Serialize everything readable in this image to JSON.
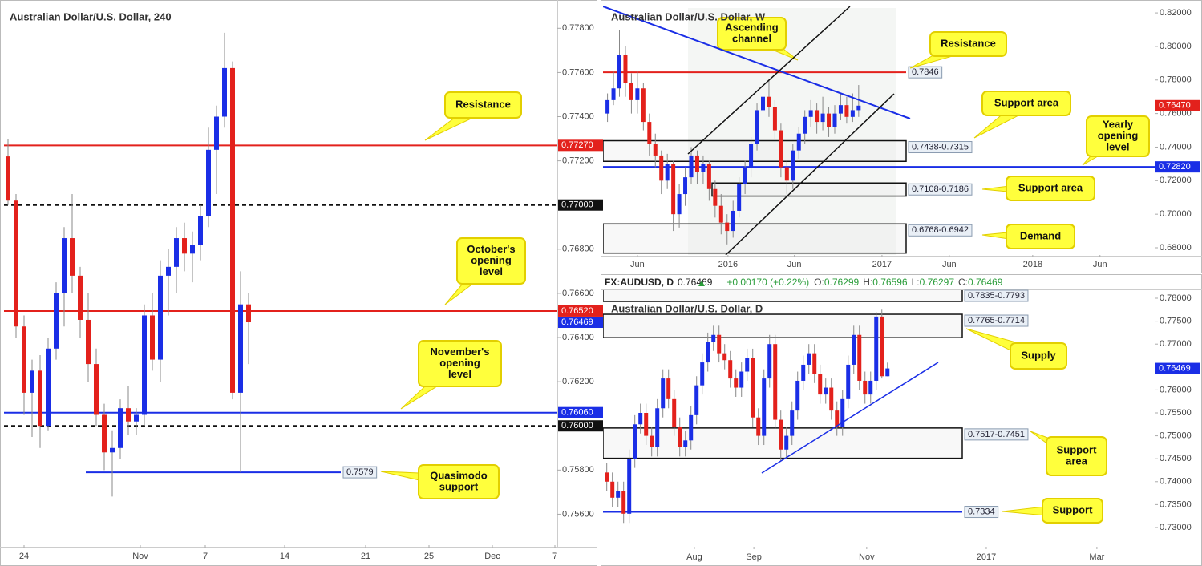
{
  "chart_data": [
    {
      "type": "candlestick",
      "title": "Australian Dollar/U.S. Dollar, 240",
      "up_color": "#1a2ee6",
      "down_color": "#e3211c",
      "ylim": [
        0.7546,
        0.7791
      ],
      "yticks": [
        {
          "value": 0.756,
          "label": "0.75600"
        },
        {
          "value": 0.758,
          "label": "0.75800"
        },
        {
          "value": 0.762,
          "label": "0.76200"
        },
        {
          "value": 0.764,
          "label": "0.76400"
        },
        {
          "value": 0.766,
          "label": "0.76600"
        },
        {
          "value": 0.768,
          "label": "0.76800"
        },
        {
          "value": 0.772,
          "label": "0.77200"
        },
        {
          "value": 0.774,
          "label": "0.77400"
        },
        {
          "value": 0.776,
          "label": "0.77600"
        },
        {
          "value": 0.778,
          "label": "0.77800"
        }
      ],
      "xlim": [
        -0.5,
        68.5
      ],
      "xticks": [
        {
          "value": 2,
          "label": "24"
        },
        {
          "value": 16.5,
          "label": "Nov"
        },
        {
          "value": 24.6,
          "label": "7"
        },
        {
          "value": 34.5,
          "label": "14"
        },
        {
          "value": 44.6,
          "label": "21"
        },
        {
          "value": 52.5,
          "label": "25"
        },
        {
          "value": 60.4,
          "label": "Dec"
        },
        {
          "value": 68.2,
          "label": "7"
        }
      ],
      "candles": [
        [
          0.7722,
          0.773,
          0.77,
          0.7702
        ],
        [
          0.7702,
          0.7705,
          0.764,
          0.7645
        ],
        [
          0.7645,
          0.765,
          0.7605,
          0.7615
        ],
        [
          0.7615,
          0.763,
          0.7595,
          0.7625
        ],
        [
          0.7625,
          0.7632,
          0.759,
          0.76
        ],
        [
          0.76,
          0.764,
          0.7598,
          0.7635
        ],
        [
          0.7635,
          0.7665,
          0.763,
          0.766
        ],
        [
          0.766,
          0.769,
          0.7645,
          0.7685
        ],
        [
          0.7685,
          0.7705,
          0.766,
          0.7668
        ],
        [
          0.7668,
          0.7672,
          0.764,
          0.7648
        ],
        [
          0.7648,
          0.766,
          0.762,
          0.7628
        ],
        [
          0.7628,
          0.7635,
          0.76,
          0.7605
        ],
        [
          0.7605,
          0.761,
          0.758,
          0.7588
        ],
        [
          0.7588,
          0.7598,
          0.7568,
          0.759
        ],
        [
          0.759,
          0.7612,
          0.7585,
          0.7608
        ],
        [
          0.7608,
          0.7618,
          0.7596,
          0.7602
        ],
        [
          0.7602,
          0.7608,
          0.7596,
          0.7605
        ],
        [
          0.7605,
          0.7655,
          0.76,
          0.765
        ],
        [
          0.765,
          0.766,
          0.7625,
          0.763
        ],
        [
          0.763,
          0.7675,
          0.762,
          0.7668
        ],
        [
          0.7668,
          0.768,
          0.765,
          0.7672
        ],
        [
          0.7672,
          0.769,
          0.766,
          0.7685
        ],
        [
          0.7685,
          0.7692,
          0.767,
          0.7678
        ],
        [
          0.7678,
          0.7688,
          0.7665,
          0.7682
        ],
        [
          0.7682,
          0.77,
          0.7675,
          0.7695
        ],
        [
          0.7695,
          0.7735,
          0.769,
          0.7725
        ],
        [
          0.7725,
          0.7745,
          0.7705,
          0.774
        ],
        [
          0.774,
          0.7778,
          0.7735,
          0.7762
        ],
        [
          0.7762,
          0.7765,
          0.7612,
          0.7615
        ],
        [
          0.7615,
          0.767,
          0.7579,
          0.7655
        ],
        [
          0.7655,
          0.766,
          0.7628,
          0.76469
        ]
      ],
      "levels": [
        {
          "value": 0.7727,
          "label": "0.77270",
          "color": "#e3211c",
          "dashed": false
        },
        {
          "value": 0.77,
          "label": "0.77000",
          "color": "#111111",
          "dashed": true
        },
        {
          "value": 0.7652,
          "label": "0.76520",
          "color": "#e3211c",
          "dashed": false
        },
        {
          "value": 0.7606,
          "label": "0.76060",
          "color": "#1a2ee6",
          "dashed": false
        },
        {
          "value": 0.76,
          "label": "0.76000",
          "color": "#111111",
          "dashed": true
        },
        {
          "value": 0.7579,
          "label": "0.7579",
          "color": "#1a2ee6",
          "dashed": false
        }
      ],
      "last": {
        "value": 0.76469,
        "label": "0.76469",
        "color": "#1a2ee6"
      },
      "zones": [],
      "callouts": [
        {
          "lines": [
            "Resistance"
          ]
        },
        {
          "lines": [
            "October's",
            "opening",
            "level"
          ]
        },
        {
          "lines": [
            "November's",
            "opening",
            "level"
          ]
        },
        {
          "lines": [
            "Quasimodo",
            "support"
          ]
        }
      ]
    },
    {
      "type": "candlestick",
      "title": "Australian Dollar/U.S. Dollar, W",
      "up_color": "#1a2ee6",
      "down_color": "#e3211c",
      "ylim": [
        0.6757,
        0.8253
      ],
      "yticks": [
        {
          "value": 0.68,
          "label": "0.68000"
        },
        {
          "value": 0.7,
          "label": "0.70000"
        },
        {
          "value": 0.72,
          "label": "0.72000"
        },
        {
          "value": 0.74,
          "label": "0.74000"
        },
        {
          "value": 0.76,
          "label": "0.76000"
        },
        {
          "value": 0.78,
          "label": "0.78000"
        },
        {
          "value": 0.8,
          "label": "0.80000"
        },
        {
          "value": 0.82,
          "label": "0.82000"
        }
      ],
      "xlim": [
        -0.75,
        91.5
      ],
      "xticks": [
        {
          "value": 5,
          "label": "Jun"
        },
        {
          "value": 20.15,
          "label": "2016"
        },
        {
          "value": 31.25,
          "label": "Jun"
        },
        {
          "value": 45.9,
          "label": "2017"
        },
        {
          "value": 57.15,
          "label": "Jun"
        },
        {
          "value": 71.1,
          "label": "2018"
        },
        {
          "value": 82.35,
          "label": "Jun"
        }
      ],
      "candles": [
        [
          0.76,
          0.772,
          0.755,
          0.768
        ],
        [
          0.768,
          0.785,
          0.765,
          0.775
        ],
        [
          0.775,
          0.81,
          0.77,
          0.795
        ],
        [
          0.795,
          0.8,
          0.77,
          0.778
        ],
        [
          0.778,
          0.784,
          0.76,
          0.768
        ],
        [
          0.768,
          0.785,
          0.76,
          0.775
        ],
        [
          0.775,
          0.778,
          0.75,
          0.755
        ],
        [
          0.755,
          0.76,
          0.735,
          0.742
        ],
        [
          0.742,
          0.748,
          0.728,
          0.735
        ],
        [
          0.735,
          0.738,
          0.712,
          0.72
        ],
        [
          0.72,
          0.736,
          0.715,
          0.73
        ],
        [
          0.73,
          0.732,
          0.69,
          0.7
        ],
        [
          0.7,
          0.718,
          0.692,
          0.712
        ],
        [
          0.712,
          0.728,
          0.705,
          0.722
        ],
        [
          0.722,
          0.74,
          0.718,
          0.735
        ],
        [
          0.735,
          0.738,
          0.718,
          0.725
        ],
        [
          0.725,
          0.735,
          0.718,
          0.73
        ],
        [
          0.73,
          0.732,
          0.708,
          0.715
        ],
        [
          0.715,
          0.72,
          0.698,
          0.705
        ],
        [
          0.705,
          0.712,
          0.688,
          0.695
        ],
        [
          0.695,
          0.7,
          0.682,
          0.69
        ],
        [
          0.69,
          0.708,
          0.686,
          0.702
        ],
        [
          0.702,
          0.722,
          0.698,
          0.718
        ],
        [
          0.718,
          0.732,
          0.712,
          0.728
        ],
        [
          0.728,
          0.746,
          0.722,
          0.742
        ],
        [
          0.742,
          0.766,
          0.738,
          0.762
        ],
        [
          0.762,
          0.774,
          0.755,
          0.77
        ],
        [
          0.77,
          0.78,
          0.758,
          0.764
        ],
        [
          0.764,
          0.768,
          0.745,
          0.75
        ],
        [
          0.75,
          0.754,
          0.722,
          0.728
        ],
        [
          0.728,
          0.732,
          0.712,
          0.72
        ],
        [
          0.72,
          0.742,
          0.715,
          0.738
        ],
        [
          0.738,
          0.752,
          0.733,
          0.748
        ],
        [
          0.748,
          0.762,
          0.742,
          0.758
        ],
        [
          0.758,
          0.768,
          0.752,
          0.762
        ],
        [
          0.762,
          0.766,
          0.748,
          0.755
        ],
        [
          0.755,
          0.77,
          0.75,
          0.76
        ],
        [
          0.76,
          0.764,
          0.746,
          0.752
        ],
        [
          0.752,
          0.765,
          0.748,
          0.76
        ],
        [
          0.76,
          0.772,
          0.756,
          0.765
        ],
        [
          0.765,
          0.77,
          0.754,
          0.758
        ],
        [
          0.758,
          0.772,
          0.755,
          0.762
        ],
        [
          0.762,
          0.777,
          0.758,
          0.7647
        ]
      ],
      "levels": [
        {
          "value": 0.7846,
          "label": "0.7846",
          "color": "#e3211c",
          "dashed": false
        },
        {
          "value": 0.7282,
          "label": "0.72820",
          "color": "#1a2ee6",
          "dashed": false
        }
      ],
      "last": {
        "value": 0.7647,
        "label": "0.76470",
        "color": "#e3211c"
      },
      "zones": [
        {
          "from": 0.7438,
          "to": 0.7315,
          "label": "0.7438-0.7315"
        },
        {
          "from": 0.7108,
          "to": 0.7186,
          "label": "0.7108-0.7186"
        },
        {
          "from": 0.6768,
          "to": 0.6942,
          "label": "0.6768-0.6942"
        }
      ],
      "callouts": [
        {
          "lines": [
            "Ascending",
            "channel"
          ]
        },
        {
          "lines": [
            "Resistance"
          ]
        },
        {
          "lines": [
            "Support area"
          ]
        },
        {
          "lines": [
            "Yearly",
            "opening",
            "level"
          ]
        },
        {
          "lines": [
            "Support area"
          ]
        },
        {
          "lines": [
            "Demand"
          ]
        }
      ]
    },
    {
      "type": "candlestick",
      "title": "Australian Dollar/U.S. Dollar, D",
      "up_color": "#1a2ee6",
      "down_color": "#e3211c",
      "header": {
        "symbol": "FX:AUDUSD, D",
        "price": 0.76469,
        "change": "+0.00170 (+0.22%)",
        "ohlc": [
          {
            "name": "O:",
            "value": 0.76299
          },
          {
            "name": "H:",
            "value": 0.76596
          },
          {
            "name": "L:",
            "value": 0.76297
          },
          {
            "name": "C:",
            "value": 0.76469
          }
        ]
      },
      "ylim": [
        0.7258,
        0.78175
      ],
      "yticks": [
        {
          "value": 0.73,
          "label": "0.73000"
        },
        {
          "value": 0.735,
          "label": "0.73500"
        },
        {
          "value": 0.74,
          "label": "0.74000"
        },
        {
          "value": 0.745,
          "label": "0.74500"
        },
        {
          "value": 0.75,
          "label": "0.75000"
        },
        {
          "value": 0.755,
          "label": "0.75500"
        },
        {
          "value": 0.76,
          "label": "0.76000"
        },
        {
          "value": 0.77,
          "label": "0.77000"
        },
        {
          "value": 0.775,
          "label": "0.77500"
        },
        {
          "value": 0.78,
          "label": "0.78000"
        }
      ],
      "xlim": [
        -0.67,
        97.6
      ],
      "xticks": [
        {
          "value": 15.6,
          "label": "Aug"
        },
        {
          "value": 26.2,
          "label": "Sep"
        },
        {
          "value": 46.3,
          "label": "Nov"
        },
        {
          "value": 67.6,
          "label": "2017"
        },
        {
          "value": 87.3,
          "label": "Mar"
        }
      ],
      "candles": [
        [
          0.742,
          0.744,
          0.738,
          0.74
        ],
        [
          0.74,
          0.742,
          0.7345,
          0.7365
        ],
        [
          0.7365,
          0.74,
          0.7345,
          0.738
        ],
        [
          0.738,
          0.74,
          0.731,
          0.733
        ],
        [
          0.733,
          0.747,
          0.731,
          0.745
        ],
        [
          0.745,
          0.7545,
          0.743,
          0.7525
        ],
        [
          0.7525,
          0.757,
          0.7505,
          0.755
        ],
        [
          0.755,
          0.757,
          0.748,
          0.75
        ],
        [
          0.75,
          0.752,
          0.7455,
          0.7475
        ],
        [
          0.7475,
          0.758,
          0.7455,
          0.756
        ],
        [
          0.756,
          0.7645,
          0.754,
          0.7625
        ],
        [
          0.7625,
          0.7645,
          0.756,
          0.758
        ],
        [
          0.758,
          0.76,
          0.75,
          0.752
        ],
        [
          0.752,
          0.754,
          0.7455,
          0.7475
        ],
        [
          0.7475,
          0.751,
          0.7455,
          0.749
        ],
        [
          0.749,
          0.7565,
          0.747,
          0.7545
        ],
        [
          0.7545,
          0.763,
          0.7525,
          0.761
        ],
        [
          0.761,
          0.768,
          0.759,
          0.766
        ],
        [
          0.766,
          0.7725,
          0.764,
          0.7705
        ],
        [
          0.7705,
          0.774,
          0.7685,
          0.772
        ],
        [
          0.772,
          0.774,
          0.766,
          0.768
        ],
        [
          0.768,
          0.77,
          0.7645,
          0.7665
        ],
        [
          0.7665,
          0.7685,
          0.7605,
          0.7625
        ],
        [
          0.7625,
          0.7645,
          0.7585,
          0.7605
        ],
        [
          0.7605,
          0.766,
          0.7585,
          0.764
        ],
        [
          0.764,
          0.769,
          0.762,
          0.767
        ],
        [
          0.767,
          0.769,
          0.752,
          0.754
        ],
        [
          0.754,
          0.756,
          0.748,
          0.75
        ],
        [
          0.75,
          0.7645,
          0.748,
          0.7625
        ],
        [
          0.7625,
          0.772,
          0.7605,
          0.77
        ],
        [
          0.77,
          0.772,
          0.7515,
          0.7535
        ],
        [
          0.7535,
          0.7555,
          0.7445,
          0.747
        ],
        [
          0.747,
          0.752,
          0.745,
          0.75
        ],
        [
          0.75,
          0.7575,
          0.748,
          0.7555
        ],
        [
          0.7555,
          0.764,
          0.7535,
          0.762
        ],
        [
          0.762,
          0.7675,
          0.76,
          0.7655
        ],
        [
          0.7655,
          0.77,
          0.7635,
          0.768
        ],
        [
          0.768,
          0.77,
          0.7615,
          0.7635
        ],
        [
          0.7635,
          0.7655,
          0.757,
          0.759
        ],
        [
          0.759,
          0.7625,
          0.757,
          0.7605
        ],
        [
          0.7605,
          0.7625,
          0.7535,
          0.7555
        ],
        [
          0.7555,
          0.7575,
          0.75,
          0.752
        ],
        [
          0.752,
          0.76,
          0.75,
          0.758
        ],
        [
          0.758,
          0.7675,
          0.756,
          0.7655
        ],
        [
          0.7655,
          0.774,
          0.7635,
          0.772
        ],
        [
          0.772,
          0.774,
          0.76,
          0.762
        ],
        [
          0.762,
          0.764,
          0.757,
          0.759
        ],
        [
          0.759,
          0.764,
          0.757,
          0.762
        ],
        [
          0.762,
          0.777,
          0.76,
          0.776
        ],
        [
          0.776,
          0.7775,
          0.7625,
          0.76299
        ],
        [
          0.76299,
          0.76596,
          0.76297,
          0.76469
        ]
      ],
      "levels": [
        {
          "value": 0.7334,
          "label": "0.7334",
          "color": "#1a2ee6",
          "dashed": false
        }
      ],
      "last": {
        "value": 0.76469,
        "label": "0.76469",
        "color": "#1a2ee6"
      },
      "zones": [
        {
          "from": 0.7835,
          "to": 0.7793,
          "label": "0.7835-0.7793"
        },
        {
          "from": 0.7765,
          "to": 0.7714,
          "label": "0.7765-0.7714"
        },
        {
          "from": 0.7517,
          "to": 0.7451,
          "label": "0.7517-0.7451"
        }
      ],
      "callouts": [
        {
          "lines": [
            "Supply"
          ]
        },
        {
          "lines": [
            "Support",
            "area"
          ]
        },
        {
          "lines": [
            "Support"
          ]
        }
      ]
    }
  ]
}
